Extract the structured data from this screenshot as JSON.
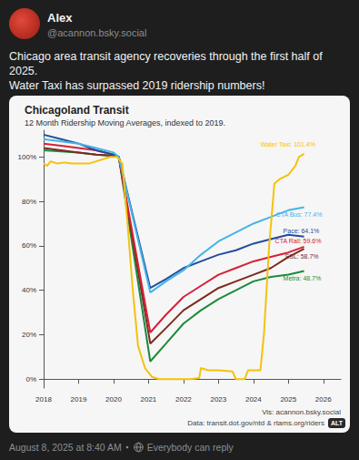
{
  "post": {
    "author": "Alex",
    "handle": "@acannon.bsky.social",
    "text": [
      "Chicago area transit agency recoveries through the first half of 2025.",
      "Water Taxi has surpassed 2019 ridership numbers!"
    ],
    "timestamp": "August 8, 2025 at 8:40 AM",
    "reply_setting": "Everybody can reply",
    "alt_badge": "ALT"
  },
  "chart_data": {
    "type": "line",
    "title": "Chicagoland Transit",
    "subtitle": "12 Month Ridership Moving Averages, indexed to 2019.",
    "credits": [
      "Vis: acannon.bsky.social",
      "Data: transit.dot.gov/ntd & rtams.org/riders"
    ],
    "xlim": [
      2018,
      2026.5
    ],
    "xticks": [
      2018,
      2019,
      2020,
      2021,
      2022,
      2023,
      2024,
      2025,
      2026
    ],
    "ylim": [
      -4,
      112
    ],
    "yticks": [
      {
        "value": 0,
        "label": "0%"
      },
      {
        "value": 20,
        "label": "20%"
      },
      {
        "value": 40,
        "label": "40%"
      },
      {
        "value": 60,
        "label": "60%"
      },
      {
        "value": 80,
        "label": "80%"
      },
      {
        "value": 100,
        "label": "100%"
      }
    ],
    "grid": false,
    "series": [
      {
        "name": "Water Taxi",
        "label": "Water Taxi: 101.4%",
        "color": "#f4c20d",
        "x": [
          2018.0,
          2018.1,
          2018.2,
          2018.4,
          2018.6,
          2018.8,
          2019.0,
          2019.3,
          2019.5,
          2019.7,
          2019.9,
          2020.1,
          2020.25,
          2020.4,
          2020.55,
          2020.7,
          2020.9,
          2021.1,
          2021.3,
          2021.7,
          2022.2,
          2022.45,
          2022.5,
          2022.7,
          2023.0,
          2023.4,
          2023.5,
          2023.75,
          2023.85,
          2024.2,
          2024.3,
          2024.45,
          2024.6,
          2024.75,
          2025.0,
          2025.2,
          2025.3,
          2025.45
        ],
        "values": [
          97,
          96,
          98,
          97,
          97.5,
          97,
          97,
          97,
          98,
          99,
          100,
          100,
          97,
          70,
          40,
          15,
          5,
          1,
          0,
          0,
          0,
          0.5,
          5,
          4,
          4,
          3.5,
          0,
          0,
          4,
          4,
          20,
          60,
          88,
          90,
          92,
          96,
          100,
          101.4
        ]
      },
      {
        "name": "CTA Bus",
        "label": "CTA Bus: 77.4%",
        "color": "#45b4e6",
        "x": [
          2018.0,
          2018.5,
          2019.0,
          2019.5,
          2020.0,
          2020.15,
          2021.05,
          2021.5,
          2022.0,
          2022.5,
          2023.0,
          2023.5,
          2024.0,
          2024.5,
          2025.0,
          2025.45
        ],
        "values": [
          108,
          107,
          106,
          104,
          102,
          100,
          39,
          44,
          49,
          56,
          62,
          66,
          70,
          73,
          76,
          77.4
        ]
      },
      {
        "name": "Pace",
        "label": "Pace: 64.1%",
        "color": "#1f4e9e",
        "x": [
          2018.0,
          2018.5,
          2019.0,
          2019.5,
          2020.0,
          2020.15,
          2021.05,
          2021.5,
          2022.0,
          2022.5,
          2023.0,
          2023.5,
          2024.0,
          2024.5,
          2025.0,
          2025.45
        ],
        "values": [
          110,
          108,
          106,
          103,
          101,
          100,
          41,
          45,
          50,
          53,
          56,
          58,
          61,
          63,
          65,
          64.1
        ]
      },
      {
        "name": "CTA Rail",
        "label": "CTA Rail: 59.6%",
        "color": "#d62039",
        "x": [
          2018.0,
          2018.5,
          2019.0,
          2019.5,
          2020.0,
          2020.15,
          2021.05,
          2021.5,
          2022.0,
          2022.5,
          2023.0,
          2023.5,
          2024.0,
          2024.5,
          2025.0,
          2025.45
        ],
        "values": [
          106,
          105,
          104,
          103,
          101,
          100,
          21,
          29,
          37,
          42,
          47,
          50,
          53,
          55,
          57,
          59.6
        ]
      },
      {
        "name": "SSL",
        "label": "SSL: 58.7%",
        "color": "#7b2a1e",
        "x": [
          2018.0,
          2018.5,
          2019.0,
          2019.5,
          2020.0,
          2020.15,
          2021.05,
          2021.5,
          2022.0,
          2022.5,
          2023.0,
          2023.5,
          2024.0,
          2024.5,
          2025.0,
          2025.45
        ],
        "values": [
          104,
          103,
          102,
          101,
          100.5,
          100,
          16,
          23,
          31,
          36,
          41,
          44,
          47,
          50,
          55,
          58.7
        ]
      },
      {
        "name": "Metra",
        "label": "Metra: 48.7%",
        "color": "#1b8a3c",
        "x": [
          2018.0,
          2018.5,
          2019.0,
          2019.5,
          2020.0,
          2020.15,
          2021.05,
          2021.5,
          2022.0,
          2022.5,
          2023.0,
          2023.5,
          2024.0,
          2024.5,
          2025.0,
          2025.45
        ],
        "values": [
          103,
          102.5,
          102,
          101,
          100.5,
          100,
          8,
          16,
          25,
          31,
          36,
          40,
          44,
          46,
          47,
          48.7
        ]
      }
    ]
  }
}
